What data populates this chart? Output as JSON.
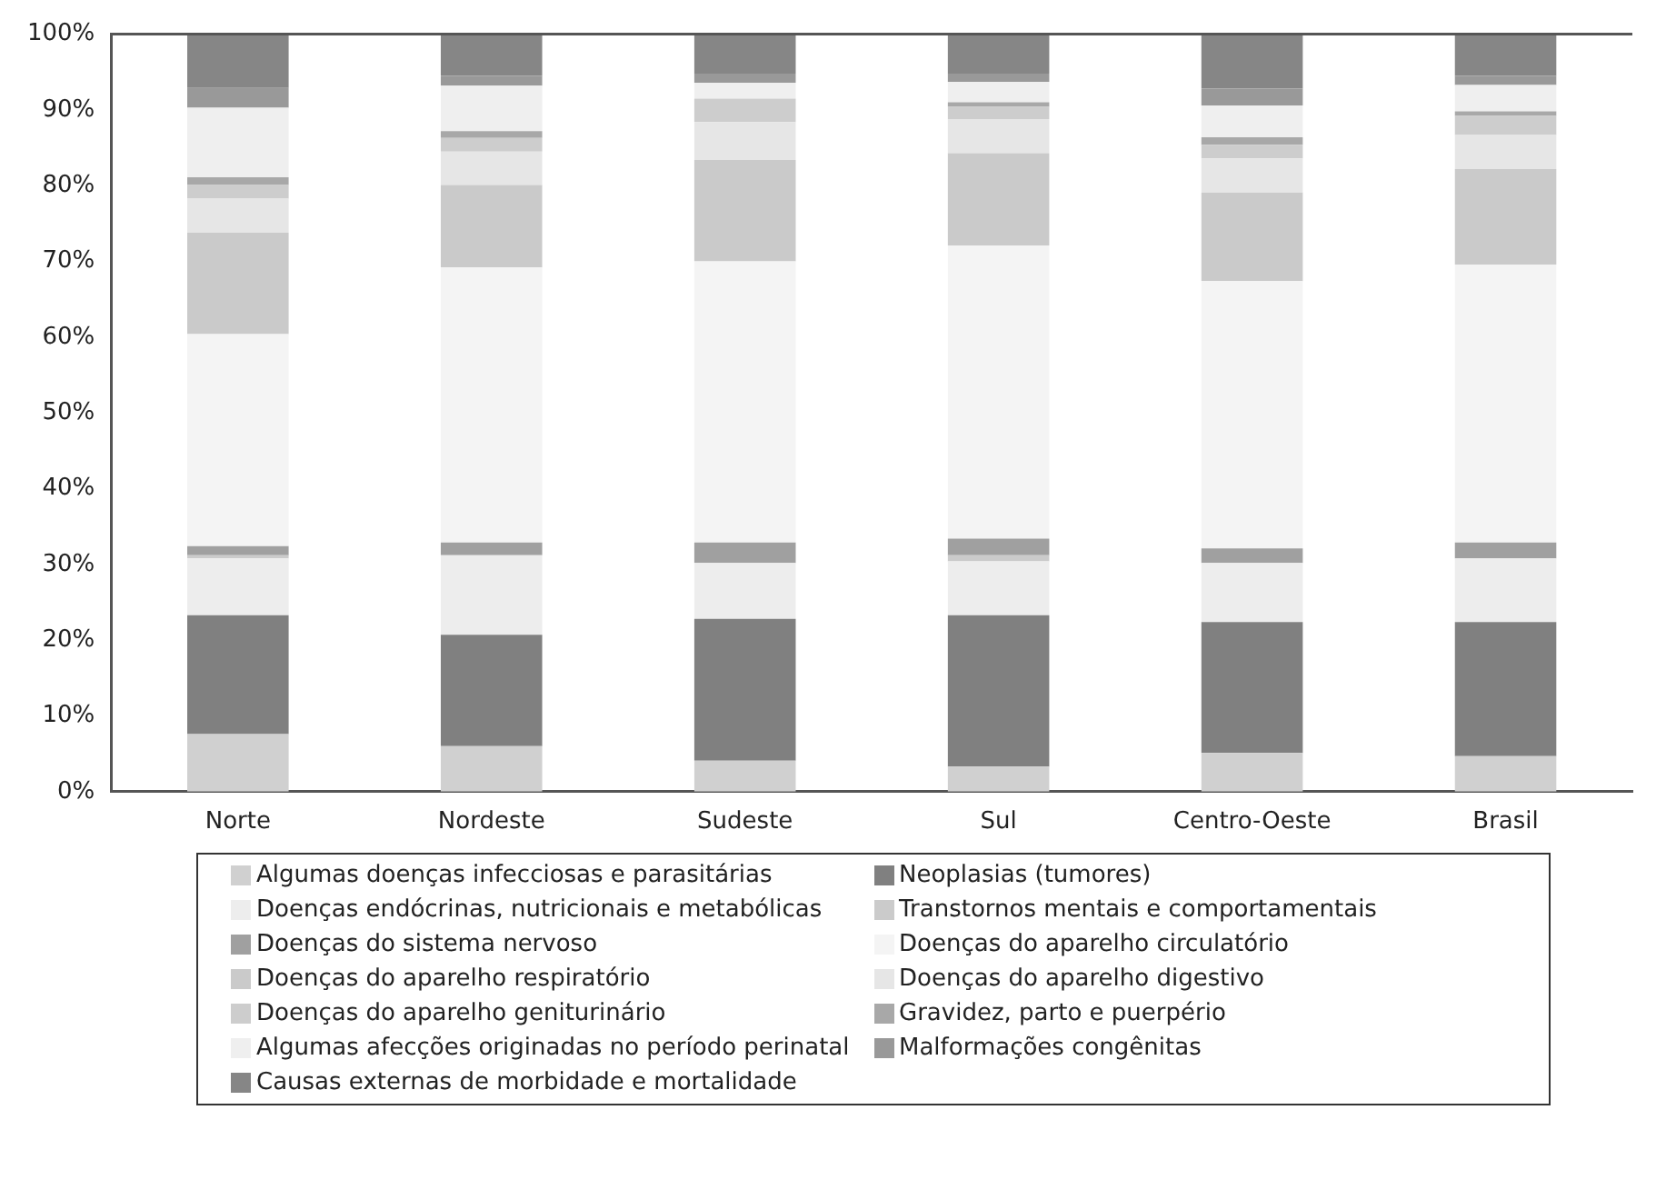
{
  "chart_data": {
    "type": "bar",
    "stacked": true,
    "categories": [
      "Norte",
      "Nordeste",
      "Sudeste",
      "Sul",
      "Centro-Oeste",
      "Brasil"
    ],
    "ylim": [
      0,
      100
    ],
    "yticks": [
      {
        "value": 0,
        "label": "0%"
      },
      {
        "value": 10,
        "label": "10%"
      },
      {
        "value": 20,
        "label": "20%"
      },
      {
        "value": 30,
        "label": "30%"
      },
      {
        "value": 40,
        "label": "40%"
      },
      {
        "value": 50,
        "label": "50%"
      },
      {
        "value": 60,
        "label": "60%"
      },
      {
        "value": 70,
        "label": "70%"
      },
      {
        "value": 80,
        "label": "80%"
      },
      {
        "value": 90,
        "label": "90%"
      },
      {
        "value": 100,
        "label": "100%"
      }
    ],
    "grid": false,
    "legend": "bottom",
    "series": [
      {
        "name": "Algumas doenças infecciosas e parasitárias",
        "color": "#d0d0d0",
        "values": [
          7.6,
          6.0,
          4.1,
          3.3,
          5.1,
          4.7
        ]
      },
      {
        "name": "Neoplasias (tumores)",
        "color": "#808080",
        "values": [
          15.7,
          14.7,
          18.7,
          20.0,
          17.3,
          17.7
        ]
      },
      {
        "name": "Doenças endócrinas, nutricionais e metabólicas",
        "color": "#ededed",
        "values": [
          7.5,
          10.5,
          7.4,
          7.1,
          7.8,
          8.4
        ]
      },
      {
        "name": "Transtornos mentais e comportamentais",
        "color": "#cbcbcb",
        "values": [
          0.4,
          null,
          null,
          0.8,
          null,
          null
        ]
      },
      {
        "name": "Doenças do sistema nervoso",
        "color": "#a0a0a0",
        "values": [
          1.2,
          1.7,
          2.7,
          2.2,
          1.9,
          2.1
        ]
      },
      {
        "name": "Doenças do aparelho circulatório",
        "color": "#f4f4f4",
        "values": [
          28.0,
          36.3,
          37.1,
          38.7,
          35.3,
          36.7
        ]
      },
      {
        "name": "Doenças do aparelho respiratório",
        "color": "#cacaca",
        "values": [
          13.4,
          10.9,
          13.4,
          12.2,
          11.7,
          12.6
        ]
      },
      {
        "name": "Doenças do aparelho digestivo",
        "color": "#e6e6e6",
        "values": [
          4.5,
          4.4,
          5.0,
          4.5,
          4.5,
          4.5
        ]
      },
      {
        "name": "Doenças do aparelho geniturinário",
        "color": "#cdcdcd",
        "values": [
          1.8,
          1.8,
          3.1,
          1.6,
          1.8,
          2.5
        ]
      },
      {
        "name": "Gravidez, parto e puerpério",
        "color": "#a8a8a8",
        "values": [
          1.0,
          0.9,
          null,
          0.6,
          1.0,
          0.6
        ]
      },
      {
        "name": "Algumas afecções originadas no período perinatal",
        "color": "#efefef",
        "values": [
          9.2,
          6.0,
          2.1,
          2.7,
          4.2,
          3.5
        ]
      },
      {
        "name": "Malformações congênitas",
        "color": "#999999",
        "values": [
          2.6,
          1.3,
          1.2,
          1.1,
          2.2,
          1.2
        ]
      },
      {
        "name": "Causas externas de morbidade e mortalidade",
        "color": "#868686",
        "values": [
          7.1,
          5.5,
          5.2,
          5.2,
          7.2,
          5.5
        ]
      }
    ]
  }
}
